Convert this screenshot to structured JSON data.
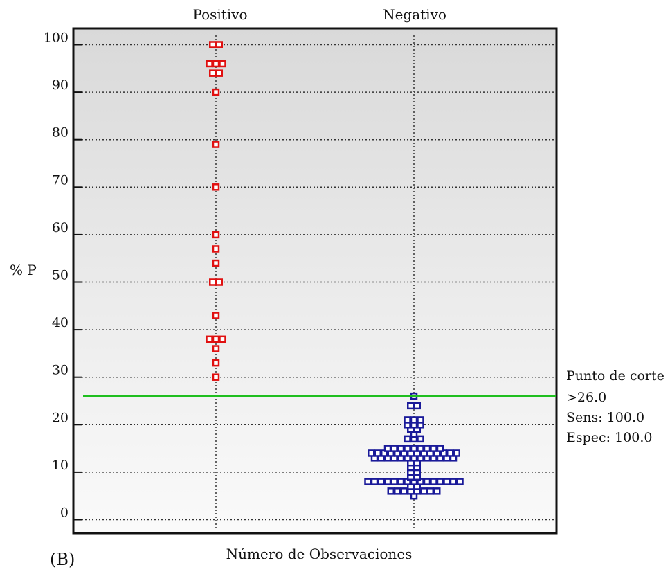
{
  "panel_label": "(B)",
  "chart_data": {
    "type": "scatter",
    "subtype": "dot-diagram",
    "ylabel": "% P",
    "xlabel": "Número de Observaciones",
    "categories": [
      "Positivo",
      "Negativo"
    ],
    "ylim": [
      0,
      100
    ],
    "yticks": [
      0,
      10,
      20,
      30,
      40,
      50,
      60,
      70,
      80,
      90,
      100
    ],
    "grid": true,
    "series": [
      {
        "category": "Positivo",
        "color": "#e01010",
        "values": [
          30,
          33,
          36,
          38,
          38,
          38,
          43,
          50,
          50,
          54,
          57,
          60,
          70,
          79,
          90,
          94,
          94,
          96,
          96,
          96,
          100,
          100
        ]
      },
      {
        "category": "Negativo",
        "color": "#1a1a99",
        "values": [
          5,
          6,
          6,
          6,
          6,
          6,
          6,
          6,
          6,
          7,
          7,
          8,
          8,
          8,
          8,
          8,
          8,
          8,
          8,
          8,
          8,
          8,
          8,
          8,
          8,
          8,
          9,
          9,
          10,
          10,
          11,
          11,
          12,
          12,
          13,
          13,
          13,
          13,
          13,
          13,
          13,
          13,
          13,
          13,
          13,
          13,
          13,
          14,
          14,
          14,
          14,
          14,
          14,
          14,
          14,
          14,
          14,
          14,
          14,
          14,
          14,
          15,
          15,
          15,
          15,
          15,
          15,
          15,
          15,
          15,
          17,
          17,
          17,
          18,
          19,
          19,
          20,
          20,
          20,
          21,
          21,
          21,
          24,
          24,
          26
        ]
      }
    ],
    "cutoff": {
      "value": 26,
      "color": "#1fbf1f",
      "labels": [
        "Punto de corte",
        ">26.0",
        "Sens: 100.0",
        "Espec: 100.0"
      ]
    }
  }
}
